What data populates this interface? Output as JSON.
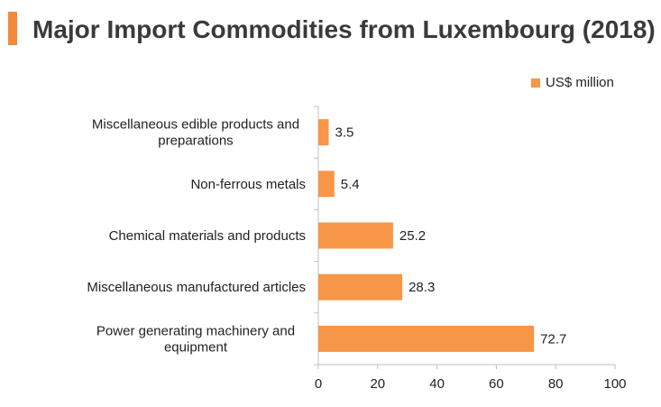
{
  "header": {
    "title": "Major Import Commodities from Luxembourg (2018)"
  },
  "colors": {
    "accent": "#f08a3c",
    "bar": "#f79646",
    "axis": "#bfbfbf"
  },
  "chart_data": {
    "type": "bar",
    "orientation": "horizontal",
    "title": "Major Import Commodities from Luxembourg (2018)",
    "xlabel": "",
    "ylabel": "",
    "xlim": [
      0,
      100
    ],
    "x_ticks": [
      0,
      20,
      40,
      60,
      80,
      100
    ],
    "grid": false,
    "legend_position": "top-right",
    "categories": [
      [
        "Miscellaneous edible products and",
        "preparations"
      ],
      [
        "Non-ferrous metals"
      ],
      [
        "Chemical materials and products"
      ],
      [
        "Miscellaneous manufactured articles"
      ],
      [
        "Power generating machinery and",
        "equipment"
      ]
    ],
    "series": [
      {
        "name": "US$ million",
        "values": [
          3.5,
          5.4,
          25.2,
          28.3,
          72.7
        ],
        "labels": [
          "3.5",
          "5.4",
          "25.2",
          "28.3",
          "72.7"
        ]
      }
    ]
  }
}
